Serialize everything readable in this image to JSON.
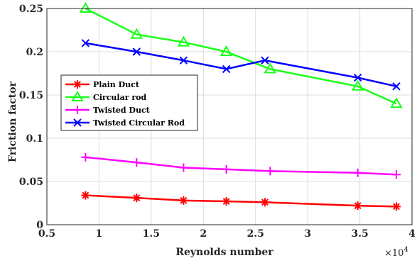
{
  "chart_data": {
    "type": "line",
    "xlabel": "Reynolds number",
    "ylabel": "Friction factor",
    "x_multiplier_label": "×10",
    "x_multiplier_exp": "4",
    "xlim": [
      0.5,
      4
    ],
    "ylim": [
      0,
      0.25
    ],
    "x_ticks": [
      "0.5",
      "1",
      "1.5",
      "2",
      "2.5",
      "3",
      "3.5",
      "4"
    ],
    "y_ticks": [
      "0",
      "0.05",
      "0.1",
      "0.15",
      "0.2",
      "0.25"
    ],
    "grid": true,
    "legend_position": "middle-left",
    "series": [
      {
        "name": "Plain Duct",
        "color": "#ff0000",
        "marker": "asterisk",
        "x": [
          0.87,
          1.36,
          1.81,
          2.22,
          2.59,
          3.48,
          3.85
        ],
        "y": [
          0.034,
          0.031,
          0.028,
          0.027,
          0.026,
          0.022,
          0.021
        ]
      },
      {
        "name": "Circular rod",
        "color": "#19ff19",
        "marker": "triangle",
        "x": [
          0.87,
          1.36,
          1.81,
          2.22,
          2.64,
          3.48,
          3.85
        ],
        "y": [
          0.25,
          0.22,
          0.211,
          0.2,
          0.18,
          0.16,
          0.14
        ]
      },
      {
        "name": "Twisted Duct",
        "color": "#ff00ff",
        "marker": "plus",
        "x": [
          0.87,
          1.36,
          1.81,
          2.22,
          2.64,
          3.48,
          3.85
        ],
        "y": [
          0.078,
          0.072,
          0.066,
          0.064,
          0.062,
          0.06,
          0.058
        ]
      },
      {
        "name": "Twisted Circular Rod",
        "color": "#0000ff",
        "marker": "x",
        "x": [
          0.87,
          1.36,
          1.81,
          2.22,
          2.59,
          3.48,
          3.85
        ],
        "y": [
          0.21,
          0.2,
          0.19,
          0.18,
          0.19,
          0.17,
          0.16
        ]
      }
    ]
  }
}
